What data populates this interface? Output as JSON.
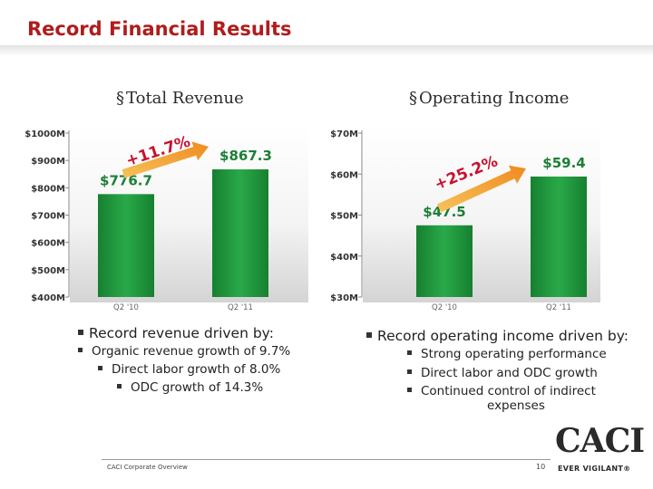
{
  "slide": {
    "title": "Record Financial Results",
    "footer": "CACI Corporate Overview",
    "page_number": "10",
    "logo": {
      "name": "CACI",
      "tagline": "EVER VIGILANT®"
    }
  },
  "text": {
    "revenue_point": "Record revenue driven by:",
    "revenue_sub1": "Organic revenue growth of 9.7%",
    "revenue_sub2": "Direct labor growth of 8.0%",
    "revenue_sub3": "ODC growth of 14.3%",
    "income_point": "Record operating income driven by:",
    "income_sub1": "Strong operating performance",
    "income_sub2": "Direct labor and ODC growth",
    "income_sub3a": "Continued control of indirect",
    "income_sub3b": "expenses"
  },
  "chart_data": [
    {
      "type": "bar",
      "title": "Total Revenue",
      "categories": [
        "Q2 '10",
        "Q2 '11"
      ],
      "values": [
        776.7,
        867.3
      ],
      "value_labels": [
        "$776.7",
        "$867.3"
      ],
      "growth_label": "+11.7%",
      "ylim": [
        400,
        1000
      ],
      "yticks": [
        400,
        500,
        600,
        700,
        800,
        900,
        1000
      ],
      "ytick_labels": [
        "$400M",
        "$500M",
        "$600M",
        "$700M",
        "$800M",
        "$900M",
        "$1000M"
      ],
      "bar_color": "#1f9a3c",
      "grid": false
    },
    {
      "type": "bar",
      "title": "Operating Income",
      "categories": [
        "Q2 '10",
        "Q2 '11"
      ],
      "values": [
        47.5,
        59.4
      ],
      "value_labels": [
        "$47.5",
        "$59.4"
      ],
      "growth_label": "+25.2%",
      "ylim": [
        30,
        70
      ],
      "yticks": [
        30,
        40,
        50,
        60,
        70
      ],
      "ytick_labels": [
        "$30M",
        "$40M",
        "$50M",
        "$60M",
        "$70M"
      ],
      "bar_color": "#1f9a3c",
      "grid": false
    }
  ]
}
